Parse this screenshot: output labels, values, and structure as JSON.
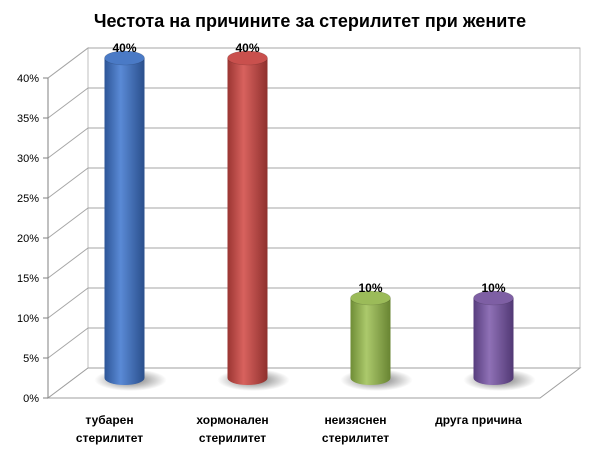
{
  "chart_data": {
    "type": "bar",
    "title": "Честота на причините за стерилитет при жените",
    "xlabel": "",
    "ylabel": "",
    "categories": [
      [
        "тубарен",
        "стерилитет"
      ],
      [
        "хормонален",
        "стерилитет"
      ],
      [
        "неизяснен",
        "стерилитет"
      ],
      [
        "друга причина"
      ]
    ],
    "values": [
      40,
      40,
      10,
      10
    ],
    "data_labels": [
      "40%",
      "40%",
      "10%",
      "10%"
    ],
    "ylim": [
      0,
      40
    ],
    "y_ticks": [
      0,
      5,
      10,
      15,
      20,
      25,
      30,
      35,
      40
    ],
    "y_tick_labels": [
      "0%",
      "5%",
      "10%",
      "15%",
      "20%",
      "25%",
      "30%",
      "35%",
      "40%"
    ],
    "grid": true,
    "style": "3d-cylinder",
    "colors": [
      "#4a7ac6",
      "#c9504d",
      "#9bbb59",
      "#7e5fa4"
    ]
  }
}
